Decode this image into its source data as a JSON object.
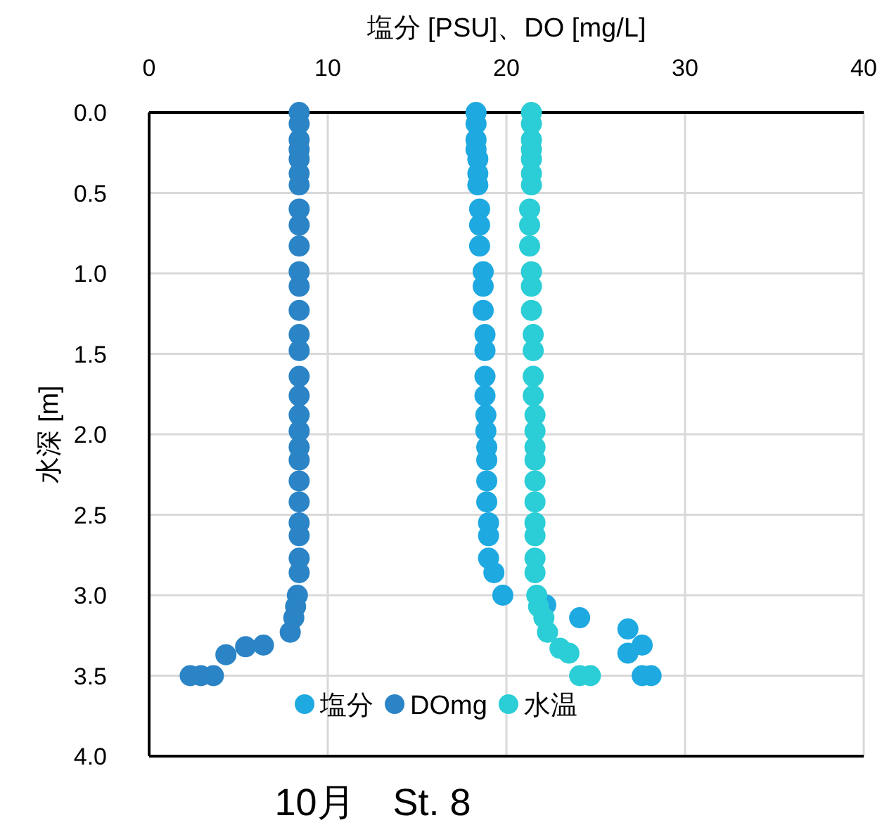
{
  "chart_data": {
    "type": "scatter",
    "title": "10月　St. 8",
    "xlabel": "塩分 [PSU]、DO [mg/L]",
    "ylabel": "水深 [m]",
    "xlim": [
      0,
      40
    ],
    "xticks": [
      0,
      10,
      20,
      30,
      40
    ],
    "ylim": [
      4,
      0
    ],
    "yticks": [
      {
        "value": 0,
        "label": "0.0"
      },
      {
        "value": 0.5,
        "label": "0.5"
      },
      {
        "value": 1,
        "label": "1.0"
      },
      {
        "value": 1.5,
        "label": "1.5"
      },
      {
        "value": 2,
        "label": "2.0"
      },
      {
        "value": 2.5,
        "label": "2.5"
      },
      {
        "value": 3,
        "label": "3.0"
      },
      {
        "value": 3.5,
        "label": "3.5"
      },
      {
        "value": 4,
        "label": "4.0"
      }
    ],
    "grid": true,
    "legend": "bottom",
    "marker": "circle",
    "series": [
      {
        "name": "塩分",
        "color": "#1ea9e1",
        "x": [
          18.3,
          18.3,
          18.3,
          18.3,
          18.4,
          18.4,
          18.4,
          18.5,
          18.5,
          18.5,
          18.7,
          18.7,
          18.7,
          18.8,
          18.8,
          18.8,
          18.8,
          18.85,
          18.85,
          18.9,
          18.9,
          18.9,
          18.9,
          19.0,
          19.0,
          19.0,
          19.3,
          19.8,
          22.2,
          24.1,
          26.8,
          27.6,
          26.8,
          27.6,
          28.1
        ],
        "values": [
          0,
          0.07,
          0.17,
          0.23,
          0.29,
          0.38,
          0.45,
          0.6,
          0.7,
          0.83,
          0.99,
          1.08,
          1.23,
          1.38,
          1.48,
          1.64,
          1.76,
          1.88,
          1.98,
          2.08,
          2.16,
          2.29,
          2.42,
          2.55,
          2.63,
          2.77,
          2.86,
          3.0,
          3.06,
          3.14,
          3.21,
          3.31,
          3.36,
          3.5,
          3.5
        ]
      },
      {
        "name": "DOmg",
        "color": "#2a84c6",
        "x": [
          8.4,
          8.4,
          8.4,
          8.4,
          8.4,
          8.4,
          8.4,
          8.4,
          8.4,
          8.4,
          8.4,
          8.4,
          8.4,
          8.4,
          8.4,
          8.4,
          8.4,
          8.4,
          8.4,
          8.4,
          8.4,
          8.4,
          8.4,
          8.4,
          8.4,
          8.4,
          8.4,
          8.3,
          8.2,
          8.1,
          7.9,
          6.4,
          5.4,
          4.3,
          3.6,
          2.9,
          2.3
        ],
        "values": [
          0,
          0.07,
          0.17,
          0.23,
          0.29,
          0.38,
          0.45,
          0.6,
          0.7,
          0.83,
          0.99,
          1.08,
          1.23,
          1.38,
          1.48,
          1.64,
          1.76,
          1.88,
          1.98,
          2.08,
          2.16,
          2.29,
          2.42,
          2.55,
          2.63,
          2.77,
          2.86,
          3.0,
          3.07,
          3.14,
          3.23,
          3.31,
          3.32,
          3.37,
          3.5,
          3.5,
          3.5
        ]
      },
      {
        "name": "水温",
        "color": "#2bcdd6",
        "x": [
          21.4,
          21.4,
          21.4,
          21.4,
          21.4,
          21.4,
          21.4,
          21.3,
          21.3,
          21.3,
          21.4,
          21.4,
          21.4,
          21.5,
          21.5,
          21.5,
          21.5,
          21.6,
          21.6,
          21.6,
          21.6,
          21.6,
          21.6,
          21.6,
          21.6,
          21.6,
          21.6,
          21.7,
          21.8,
          22.1,
          22.3,
          23.0,
          23.5,
          24.1,
          24.7
        ],
        "values": [
          0,
          0.07,
          0.17,
          0.23,
          0.29,
          0.38,
          0.45,
          0.6,
          0.7,
          0.83,
          0.99,
          1.08,
          1.23,
          1.38,
          1.48,
          1.64,
          1.76,
          1.88,
          1.98,
          2.08,
          2.16,
          2.29,
          2.42,
          2.55,
          2.63,
          2.77,
          2.86,
          3.0,
          3.07,
          3.14,
          3.23,
          3.33,
          3.36,
          3.5,
          3.5
        ]
      }
    ]
  }
}
